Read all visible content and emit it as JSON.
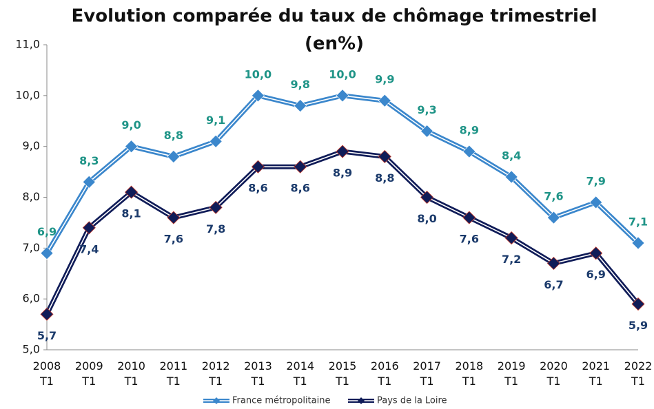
{
  "chart_data": {
    "type": "line",
    "title": [
      "Evolution comparée du taux de chômage trimestriel",
      "(en%)"
    ],
    "categories": [
      "2008 T1",
      "2009 T1",
      "2010 T1",
      "2011 T1",
      "2012 T1",
      "2013 T1",
      "2014 T1",
      "2015 T1",
      "2016 T1",
      "2017 T1",
      "2018 T1",
      "2019 T1",
      "2020 T1",
      "2021 T1",
      "2022 T1"
    ],
    "series": [
      {
        "name": "France métropolitaine",
        "color": "#3b87cc",
        "label_color": "#1f9487",
        "values": [
          6.9,
          8.3,
          9.0,
          8.8,
          9.1,
          10.0,
          9.8,
          10.0,
          9.9,
          9.3,
          8.9,
          8.4,
          7.6,
          7.9,
          7.1
        ],
        "value_labels": [
          "6,9",
          "8,3",
          "9,0",
          "8,8",
          "9,1",
          "10,0",
          "9,8",
          "10,0",
          "9,9",
          "9,3",
          "8,9",
          "8,4",
          "7,6",
          "7,9",
          "7,1"
        ]
      },
      {
        "name": "Pays de la Loire",
        "color": "#101c58",
        "label_color": "#1b3a6b",
        "values": [
          5.7,
          7.4,
          8.1,
          7.6,
          7.8,
          8.6,
          8.6,
          8.9,
          8.8,
          8.0,
          7.6,
          7.2,
          6.7,
          6.9,
          5.9
        ],
        "value_labels": [
          "5,7",
          "7,4",
          "8,1",
          "7,6",
          "7,8",
          "8,6",
          "8,6",
          "8,9",
          "8,8",
          "8,0",
          "7,6",
          "7,2",
          "6,7",
          "6,9",
          "5,9"
        ]
      }
    ],
    "ylim": [
      5,
      11
    ],
    "yticks": [
      {
        "value": 5,
        "label": "5,0"
      },
      {
        "value": 6,
        "label": "6,0"
      },
      {
        "value": 7,
        "label": "7,0"
      },
      {
        "value": 8,
        "label": "8,0"
      },
      {
        "value": 9,
        "label": "9,0"
      },
      {
        "value": 10,
        "label": "10,0"
      },
      {
        "value": 11,
        "label": "11,0"
      }
    ],
    "grid": false,
    "legend": "bottom"
  }
}
